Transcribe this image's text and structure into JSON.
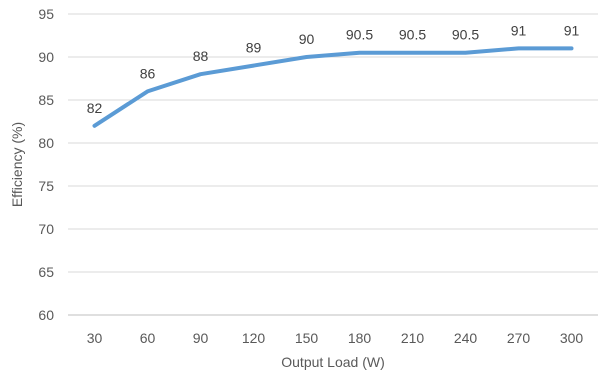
{
  "chart_data": {
    "type": "line",
    "title": "",
    "xlabel": "Output Load (W)",
    "ylabel": "Efficiency (%)",
    "categories": [
      "30",
      "60",
      "90",
      "120",
      "150",
      "180",
      "210",
      "240",
      "270",
      "300"
    ],
    "series": [
      {
        "values": [
          82,
          86,
          88,
          89,
          90,
          90.5,
          90.5,
          90.5,
          91,
          91
        ],
        "data_labels": [
          "82",
          "86",
          "88",
          "89",
          "90",
          "90.5",
          "90.5",
          "90.5",
          "91",
          "91"
        ],
        "color": "#5b9bd5"
      }
    ],
    "ylim": [
      60,
      95
    ],
    "yticks": [
      "60",
      "65",
      "70",
      "75",
      "80",
      "85",
      "90",
      "95"
    ],
    "grid": true,
    "legend": "none"
  }
}
